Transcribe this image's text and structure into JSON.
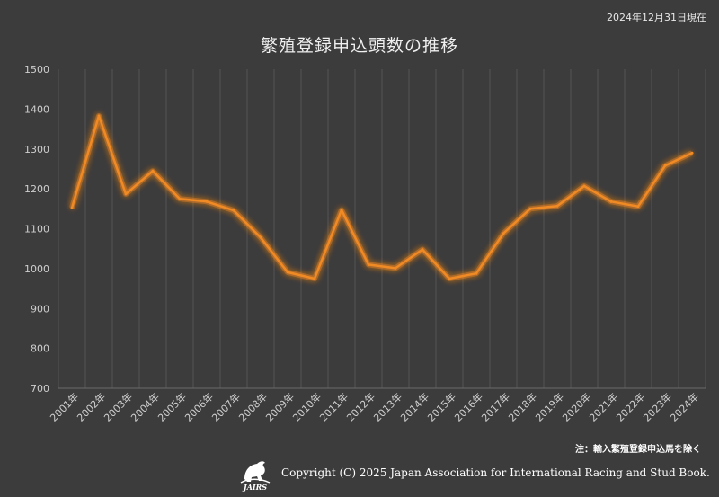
{
  "date_stamp": "2024年12月31日現在",
  "note": "注：輸入繁殖登録申込馬を除く",
  "copyright": "Copyright (C) 2025 Japan Association for International Racing and Stud Book.",
  "logo_text": "JAIRS",
  "colors": {
    "background": "#3c3c3c",
    "line": "#f08a24",
    "glow": "#ff8c1a",
    "grid": "#555555"
  },
  "chart_data": {
    "type": "line",
    "title": "繁殖登録申込頭数の推移",
    "xlabel": "",
    "ylabel": "",
    "ylim": [
      700,
      1500
    ],
    "yticks": [
      700,
      800,
      900,
      1000,
      1100,
      1200,
      1300,
      1400,
      1500
    ],
    "grid": "vertical",
    "categories": [
      "2001年",
      "2002年",
      "2003年",
      "2004年",
      "2005年",
      "2006年",
      "2007年",
      "2008年",
      "2009年",
      "2010年",
      "2011年",
      "2012年",
      "2013年",
      "2014年",
      "2015年",
      "2016年",
      "2017年",
      "2018年",
      "2019年",
      "2020年",
      "2021年",
      "2022年",
      "2023年",
      "2024年"
    ],
    "values": [
      1152,
      1383,
      1187,
      1245,
      1175,
      1168,
      1146,
      1078,
      991,
      975,
      1147,
      1010,
      1001,
      1048,
      975,
      988,
      1088,
      1150,
      1157,
      1207,
      1168,
      1156,
      1258,
      1290
    ]
  }
}
